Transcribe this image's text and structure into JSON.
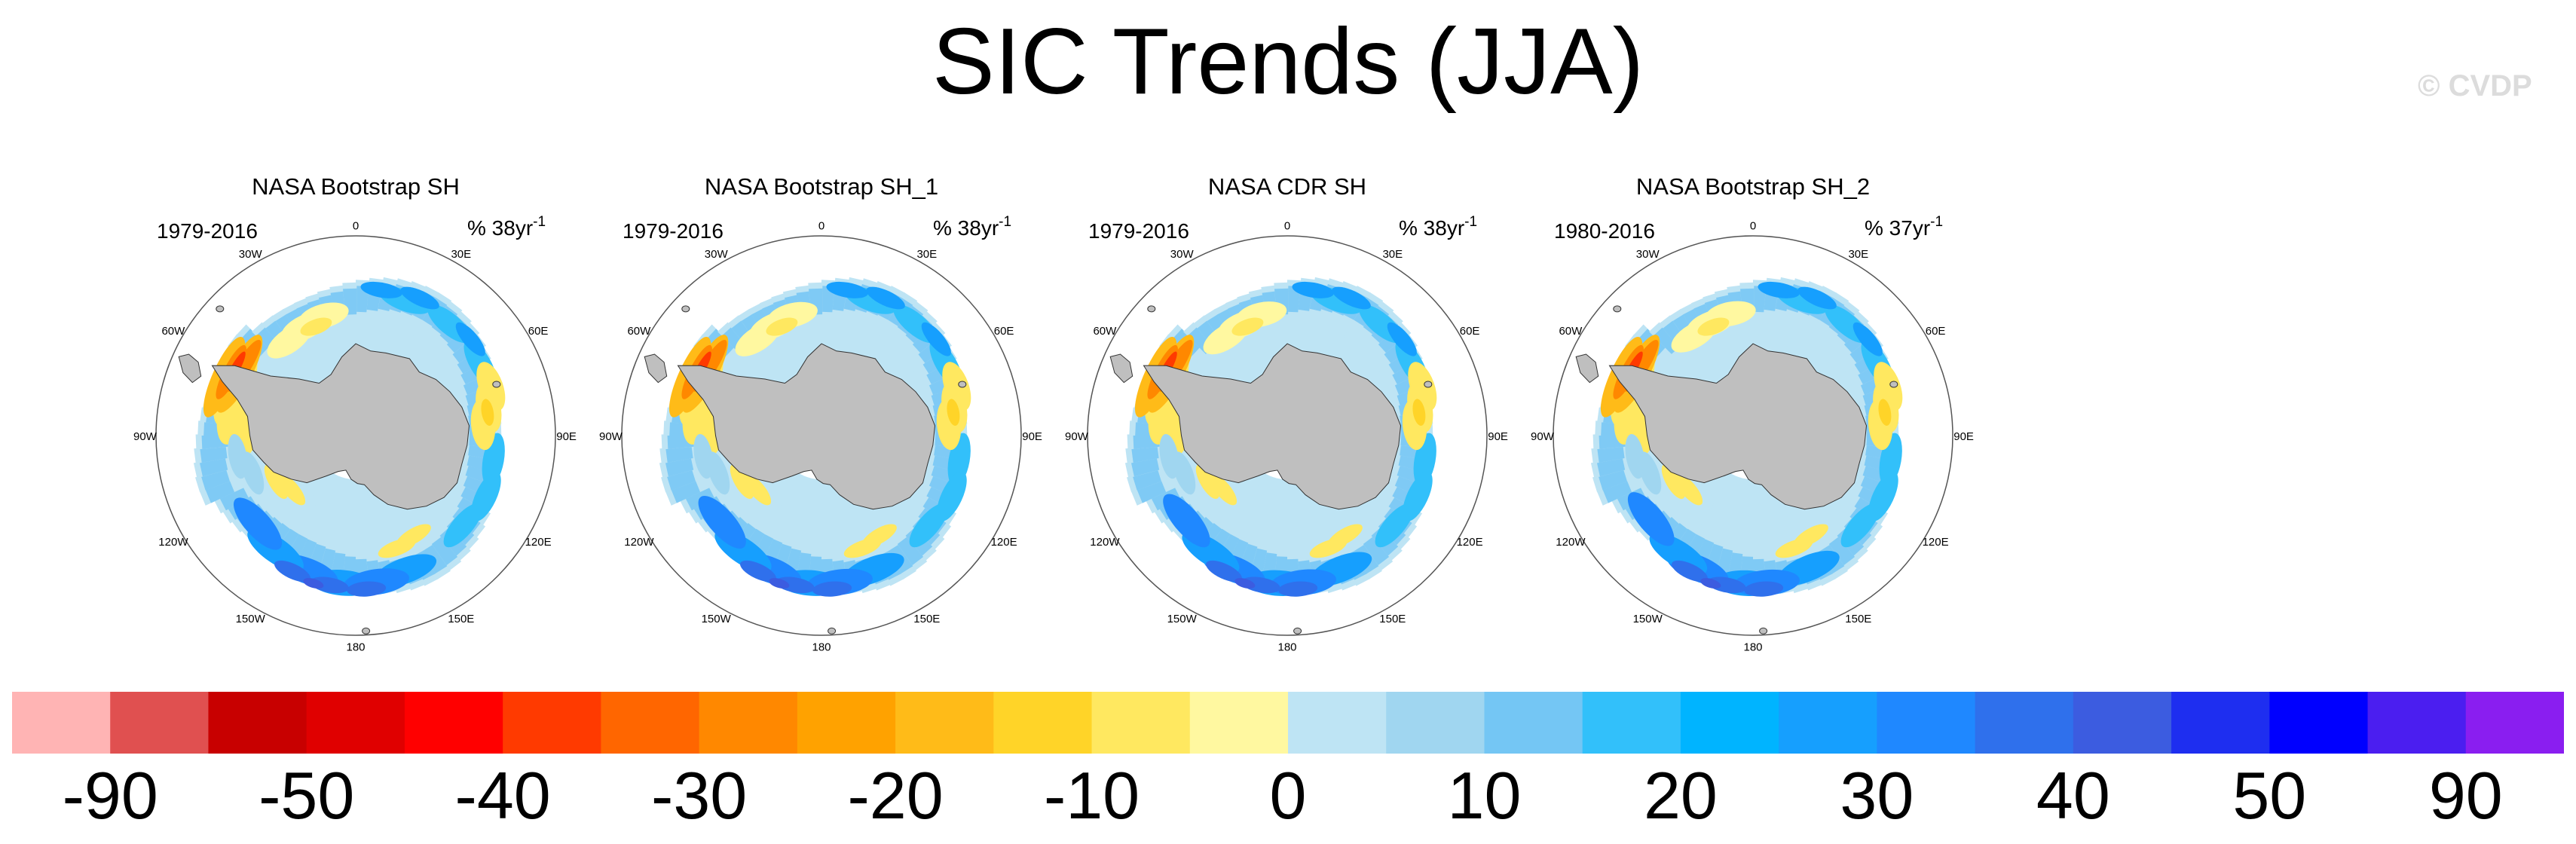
{
  "title": "SIC Trends (JJA)",
  "watermark": "© CVDP",
  "panels": [
    {
      "title": "NASA Bootstrap SH",
      "period": "1979-2016",
      "units_prefix": "% 38yr",
      "units_sup": "-1"
    },
    {
      "title": "NASA Bootstrap SH_1",
      "period": "1979-2016",
      "units_prefix": "% 38yr",
      "units_sup": "-1"
    },
    {
      "title": "NASA CDR SH",
      "period": "1979-2016",
      "units_prefix": "% 38yr",
      "units_sup": "-1"
    },
    {
      "title": "NASA Bootstrap SH_2",
      "period": "1980-2016",
      "units_prefix": "% 37yr",
      "units_sup": "-1"
    }
  ],
  "lon_labels": [
    {
      "lon": 0,
      "text": "0"
    },
    {
      "lon": 30,
      "text": "30E"
    },
    {
      "lon": 60,
      "text": "60E"
    },
    {
      "lon": 90,
      "text": "90E"
    },
    {
      "lon": 120,
      "text": "120E"
    },
    {
      "lon": 150,
      "text": "150E"
    },
    {
      "lon": 180,
      "text": "180"
    },
    {
      "lon": -150,
      "text": "150W"
    },
    {
      "lon": -120,
      "text": "120W"
    },
    {
      "lon": -90,
      "text": "90W"
    },
    {
      "lon": -60,
      "text": "60W"
    },
    {
      "lon": -30,
      "text": "30W"
    }
  ],
  "chart_data": {
    "type": "heatmap",
    "title": "SIC Trends (JJA)",
    "projection": "south polar stereographic",
    "variable": "sea ice concentration trend",
    "season": "JJA",
    "colorbar": {
      "labels": [
        "-90",
        "-50",
        "-40",
        "-30",
        "-20",
        "-10",
        "0",
        "10",
        "20",
        "30",
        "40",
        "50",
        "90"
      ],
      "colors": [
        "#ffb4b4",
        "#e05050",
        "#c80000",
        "#e00000",
        "#ff0000",
        "#ff3a00",
        "#ff6600",
        "#ff8800",
        "#ffa200",
        "#ffbb18",
        "#ffd428",
        "#ffe860",
        "#fff8a0",
        "#bee4f4",
        "#a0d6f0",
        "#74c6f4",
        "#32c0fa",
        "#00b4ff",
        "#169ffe",
        "#1f88ff",
        "#2f70ec",
        "#3c5ce0",
        "#1e2ef0",
        "#0000ff",
        "#4b1ef0",
        "#8a1ef0"
      ]
    },
    "panels": [
      {
        "name": "NASA Bootstrap SH",
        "years": "1979-2016"
      },
      {
        "name": "NASA Bootstrap SH_1",
        "years": "1979-2016"
      },
      {
        "name": "NASA CDR SH",
        "years": "1979-2016"
      },
      {
        "name": "NASA Bootstrap SH_2",
        "years": "1980-2016"
      }
    ]
  }
}
